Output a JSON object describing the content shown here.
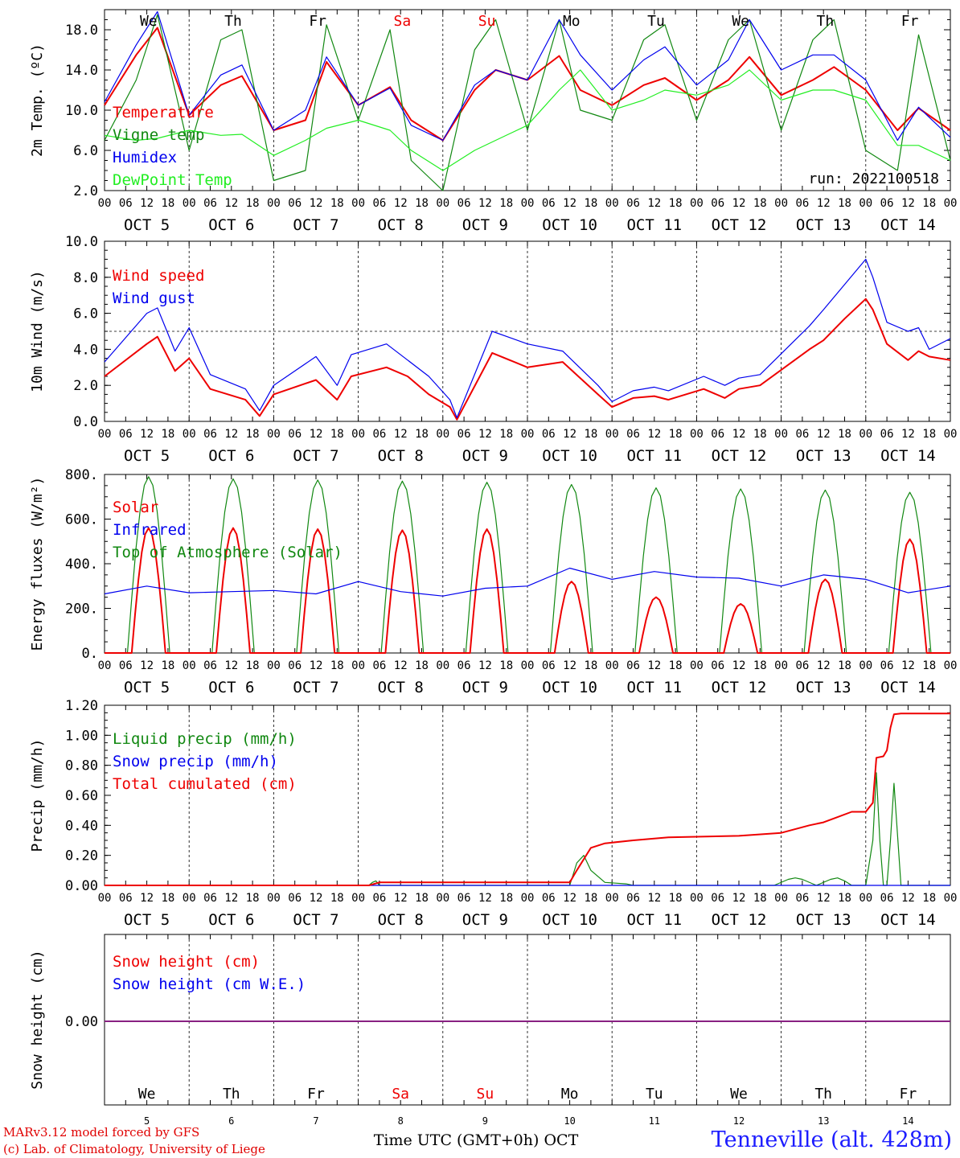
{
  "colors": {
    "red": "#ee0000",
    "green": "#118811",
    "blue": "#0000ee",
    "lightgreen": "#22ee22",
    "weekend": "#ee0000",
    "text": "#000000",
    "purple": "#7a2a9a"
  },
  "days": [
    {
      "dow": "We",
      "date": "OCT  5",
      "num": "5",
      "weekend": false
    },
    {
      "dow": "Th",
      "date": "OCT  6",
      "num": "6",
      "weekend": false
    },
    {
      "dow": "Fr",
      "date": "OCT  7",
      "num": "7",
      "weekend": false
    },
    {
      "dow": "Sa",
      "date": "OCT  8",
      "num": "8",
      "weekend": true
    },
    {
      "dow": "Su",
      "date": "OCT  9",
      "num": "9",
      "weekend": true
    },
    {
      "dow": "Mo",
      "date": "OCT 10",
      "num": "10",
      "weekend": false
    },
    {
      "dow": "Tu",
      "date": "OCT 11",
      "num": "11",
      "weekend": false
    },
    {
      "dow": "We",
      "date": "OCT 12",
      "num": "12",
      "weekend": false
    },
    {
      "dow": "Th",
      "date": "OCT 13",
      "num": "13",
      "weekend": false
    },
    {
      "dow": "Fr",
      "date": "OCT 14",
      "num": "14",
      "weekend": false
    }
  ],
  "hour_labels": [
    "00",
    "06",
    "12",
    "18"
  ],
  "final_hour_label": "00",
  "x_axis_title": "Time UTC (GMT+0h) OCT",
  "run_label": "run: 2022100518",
  "credits": [
    "MARv3.12 model forced by GFS",
    "(c) Lab. of Climatology, University of Liege"
  ],
  "location": "Tenneville (alt. 428m)",
  "chart_data": [
    {
      "type": "line",
      "id": "temp",
      "ylabel": "2m Temp. (ºC)",
      "ylim": [
        2,
        20
      ],
      "yticks": [
        2,
        6,
        10,
        14,
        18
      ],
      "yticklabels": [
        "2.0",
        "6.0",
        "10.0",
        "14.0",
        "18.0"
      ],
      "legend": [
        "Temperature",
        "Vigne temp",
        "Humidex",
        "DewPoint Temp"
      ],
      "series": [
        {
          "name": "Temperature",
          "color": "red",
          "x": [
            0,
            9,
            15,
            24,
            33,
            39,
            48,
            57,
            63,
            72,
            81,
            87,
            96,
            105,
            111,
            120,
            129,
            135,
            144,
            153,
            159,
            168,
            177,
            183,
            192,
            201,
            207,
            216,
            225,
            231,
            240
          ],
          "y": [
            10.5,
            15.5,
            18.2,
            9.5,
            12.5,
            13.4,
            8,
            9,
            14.8,
            10.5,
            12.3,
            9,
            7,
            12,
            14,
            13,
            15.4,
            12,
            10.5,
            12.5,
            13.2,
            11,
            13,
            15.3,
            11.5,
            13,
            14.3,
            12,
            8,
            10.2,
            8
          ]
        },
        {
          "name": "Vigne temp",
          "color": "green",
          "x": [
            0,
            9,
            15,
            24,
            33,
            39,
            48,
            57,
            63,
            72,
            81,
            87,
            96,
            105,
            111,
            120,
            129,
            135,
            144,
            153,
            159,
            168,
            177,
            183,
            192,
            201,
            207,
            216,
            225,
            231,
            240
          ],
          "y": [
            7,
            13,
            19.5,
            6,
            17,
            18,
            3,
            4,
            18.5,
            9,
            18,
            5,
            2,
            16,
            19,
            8,
            19,
            10,
            9,
            17,
            18.5,
            9,
            17,
            19,
            8,
            17,
            19,
            6,
            4,
            17.5,
            5
          ]
        },
        {
          "name": "Humidex",
          "color": "blue",
          "x": [
            0,
            9,
            15,
            24,
            33,
            39,
            48,
            57,
            63,
            72,
            81,
            87,
            96,
            105,
            111,
            120,
            129,
            135,
            144,
            153,
            159,
            168,
            177,
            183,
            192,
            201,
            207,
            216,
            225,
            231,
            240
          ],
          "y": [
            10.8,
            16.5,
            19.8,
            9.5,
            13.5,
            14.5,
            8,
            10,
            15.3,
            10.5,
            12.2,
            8.5,
            7,
            12.5,
            14,
            13,
            19,
            15.5,
            12,
            15,
            16.3,
            12.5,
            15,
            19,
            14,
            15.5,
            15.5,
            13,
            7,
            10.3,
            7.3
          ]
        },
        {
          "name": "DewPoint Temp",
          "color": "lightgreen",
          "x": [
            0,
            9,
            15,
            24,
            33,
            39,
            48,
            57,
            63,
            72,
            81,
            87,
            96,
            105,
            111,
            120,
            129,
            135,
            144,
            153,
            159,
            168,
            177,
            183,
            192,
            201,
            207,
            216,
            225,
            231,
            240
          ],
          "y": [
            7.5,
            7,
            7.2,
            8,
            7.5,
            7.6,
            5.5,
            7,
            8.2,
            9,
            8,
            6,
            4,
            6,
            7,
            8.5,
            12,
            14,
            10,
            11,
            12,
            11.5,
            12.5,
            14,
            11,
            12,
            12,
            11,
            6.5,
            6.5,
            5
          ]
        }
      ]
    },
    {
      "type": "line",
      "id": "wind",
      "ylabel": "10m Wind (m/s)",
      "ylim": [
        0,
        10
      ],
      "yticks": [
        0,
        2,
        4,
        6,
        8,
        10
      ],
      "yticklabels": [
        "0.0",
        "2.0",
        "4.0",
        "6.0",
        "8.0",
        "10.0"
      ],
      "reference_line": 5,
      "legend": [
        "Wind speed",
        "Wind gust"
      ],
      "series": [
        {
          "name": "Wind speed",
          "color": "red",
          "x": [
            0,
            12,
            15,
            20,
            24,
            30,
            40,
            44,
            48,
            60,
            66,
            70,
            80,
            86,
            92,
            98,
            100,
            110,
            120,
            130,
            140,
            144,
            150,
            156,
            160,
            170,
            176,
            180,
            186,
            200,
            204,
            210,
            216,
            218,
            222,
            228,
            231,
            234,
            240
          ],
          "y": [
            2.5,
            4.3,
            4.7,
            2.8,
            3.5,
            1.8,
            1.2,
            0.3,
            1.5,
            2.3,
            1.2,
            2.5,
            3,
            2.5,
            1.5,
            0.8,
            0.1,
            3.8,
            3,
            3.3,
            1.5,
            0.8,
            1.3,
            1.4,
            1.2,
            1.8,
            1.3,
            1.8,
            2,
            4,
            4.5,
            5.7,
            6.8,
            6.2,
            4.3,
            3.4,
            3.9,
            3.6,
            3.4
          ]
        },
        {
          "name": "Wind gust",
          "color": "blue",
          "x": [
            0,
            12,
            15,
            20,
            24,
            30,
            40,
            44,
            48,
            60,
            66,
            70,
            80,
            86,
            92,
            98,
            100,
            110,
            120,
            130,
            140,
            144,
            150,
            156,
            160,
            170,
            176,
            180,
            186,
            200,
            204,
            210,
            216,
            218,
            222,
            228,
            231,
            234,
            240
          ],
          "y": [
            3.3,
            6,
            6.3,
            3.9,
            5.2,
            2.6,
            1.8,
            0.6,
            2,
            3.6,
            2,
            3.7,
            4.3,
            3.4,
            2.5,
            1.2,
            0.2,
            5,
            4.3,
            3.9,
            2,
            1.1,
            1.7,
            1.9,
            1.7,
            2.5,
            2,
            2.4,
            2.6,
            5.3,
            6.2,
            7.6,
            9,
            8,
            5.5,
            5,
            5.2,
            4,
            4.6
          ]
        }
      ]
    },
    {
      "type": "line",
      "id": "energy",
      "ylabel": "Energy fluxes (W/m²)",
      "ylim": [
        0,
        800
      ],
      "yticks": [
        0,
        200,
        400,
        600,
        800
      ],
      "yticklabels": [
        "0.",
        "200.",
        "400.",
        "600.",
        "800."
      ],
      "legend": [
        "Solar",
        "Infrared",
        "Top of Atmosphere (Solar)"
      ],
      "series": [
        {
          "name": "Top of Atmosphere (Solar)",
          "color": "green",
          "peaks": [
            790,
            780,
            775,
            770,
            765,
            755,
            740,
            735,
            730,
            720
          ]
        },
        {
          "name": "Solar",
          "color": "red",
          "peaks": [
            560,
            560,
            555,
            550,
            555,
            320,
            250,
            220,
            330,
            510
          ]
        },
        {
          "name": "Infrared",
          "color": "blue",
          "x": [
            0,
            12,
            24,
            36,
            48,
            60,
            72,
            84,
            96,
            108,
            120,
            132,
            144,
            156,
            168,
            180,
            192,
            204,
            216,
            228,
            240
          ],
          "y": [
            265,
            300,
            270,
            275,
            280,
            265,
            320,
            275,
            255,
            290,
            300,
            380,
            330,
            365,
            340,
            335,
            300,
            350,
            330,
            270,
            300
          ]
        }
      ]
    },
    {
      "type": "line",
      "id": "precip",
      "ylabel": "Precip (mm/h)",
      "ylim": [
        0,
        1.2
      ],
      "yticks": [
        0,
        0.2,
        0.4,
        0.6,
        0.8,
        1.0,
        1.2
      ],
      "yticklabels": [
        "0.00",
        "0.20",
        "0.40",
        "0.60",
        "0.80",
        "1.00",
        "1.20"
      ],
      "legend": [
        "Liquid precip (mm/h)",
        "Snow precip (mm/h)",
        "Total cumulated (cm)"
      ],
      "series": [
        {
          "name": "Liquid precip (mm/h)",
          "color": "green",
          "x": [
            0,
            75,
            76,
            77,
            78,
            132,
            134,
            136,
            138,
            142,
            148,
            150,
            190,
            194,
            196,
            198,
            202,
            206,
            208,
            210,
            212,
            216,
            218,
            219,
            220,
            221,
            222,
            223,
            224,
            226,
            240
          ],
          "y": [
            0,
            0,
            0.02,
            0.03,
            0,
            0,
            0.15,
            0.2,
            0.1,
            0.02,
            0.01,
            0,
            0,
            0.04,
            0.05,
            0.04,
            0,
            0.04,
            0.05,
            0.03,
            0,
            0,
            0.3,
            0.75,
            0.3,
            0,
            0,
            0.3,
            0.68,
            0,
            0
          ]
        },
        {
          "name": "Snow precip (mm/h)",
          "color": "blue",
          "x": [
            0,
            240
          ],
          "y": [
            0,
            0
          ]
        },
        {
          "name": "Total cumulated (cm)",
          "color": "red",
          "x": [
            0,
            75,
            78,
            132,
            134,
            138,
            142,
            150,
            160,
            180,
            192,
            200,
            204,
            212,
            216,
            218,
            219,
            221,
            222,
            223,
            224,
            226,
            240
          ],
          "y": [
            0,
            0,
            0.02,
            0.02,
            0.1,
            0.25,
            0.28,
            0.3,
            0.32,
            0.33,
            0.35,
            0.4,
            0.42,
            0.49,
            0.49,
            0.55,
            0.85,
            0.86,
            0.9,
            1.05,
            1.14,
            1.145,
            1.145
          ]
        }
      ]
    },
    {
      "type": "line",
      "id": "snow",
      "ylabel": "Snow height (cm)",
      "yticks": [
        0
      ],
      "yticklabels": [
        "0.00"
      ],
      "legend": [
        "Snow height (cm)",
        "Snow height (cm W.E.)"
      ],
      "series": [
        {
          "name": "Snow height (cm)",
          "color": "red",
          "x": [
            0,
            240
          ],
          "y": [
            0,
            0
          ]
        },
        {
          "name": "Snow height (cm W.E.)",
          "color": "blue",
          "x": [
            0,
            240
          ],
          "y": [
            0,
            0
          ]
        }
      ]
    }
  ]
}
